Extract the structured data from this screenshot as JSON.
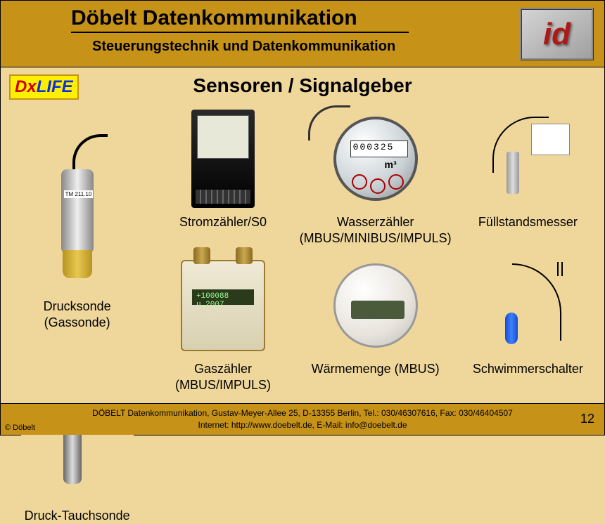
{
  "header": {
    "title": "Döbelt Datenkommunikation",
    "subtitle": "Steuerungstechnik und Datenkommunikation",
    "logo_text": "id"
  },
  "brand": {
    "dx": "Dx",
    "life": "LIFE"
  },
  "main_title": "Sensoren / Signalgeber",
  "sensors": [
    {
      "caption": "Stromzähler/S0"
    },
    {
      "caption": "Wasserzähler\n(MBUS/MINIBUS/IMPULS)",
      "digits": "000325",
      "m3": "m³"
    },
    {
      "caption": "Füllstandsmesser"
    },
    {
      "caption": "Drucksonde\n(Gassonde)",
      "label": "TM 211.10"
    },
    {
      "caption": "Gaszähler\n(MBUS/IMPULS)",
      "lcd": "+100088   u.2007"
    },
    {
      "caption": "Wärmemenge (MBUS)"
    },
    {
      "caption": "Schwimmerschalter"
    },
    {
      "caption": "Druck-Tauchsonde"
    }
  ],
  "footer": {
    "copyright": "© Döbelt",
    "line1": "DÖBELT Datenkommunikation, Gustav-Meyer-Allee 25, D-13355 Berlin, Tel.: 030/46307616, Fax: 030/46404507",
    "line2": "Internet: http://www.doebelt.de, E-Mail: info@doebelt.de",
    "page": "12"
  },
  "colors": {
    "header_bg": "#c79218",
    "body_bg": "#efd79c"
  }
}
